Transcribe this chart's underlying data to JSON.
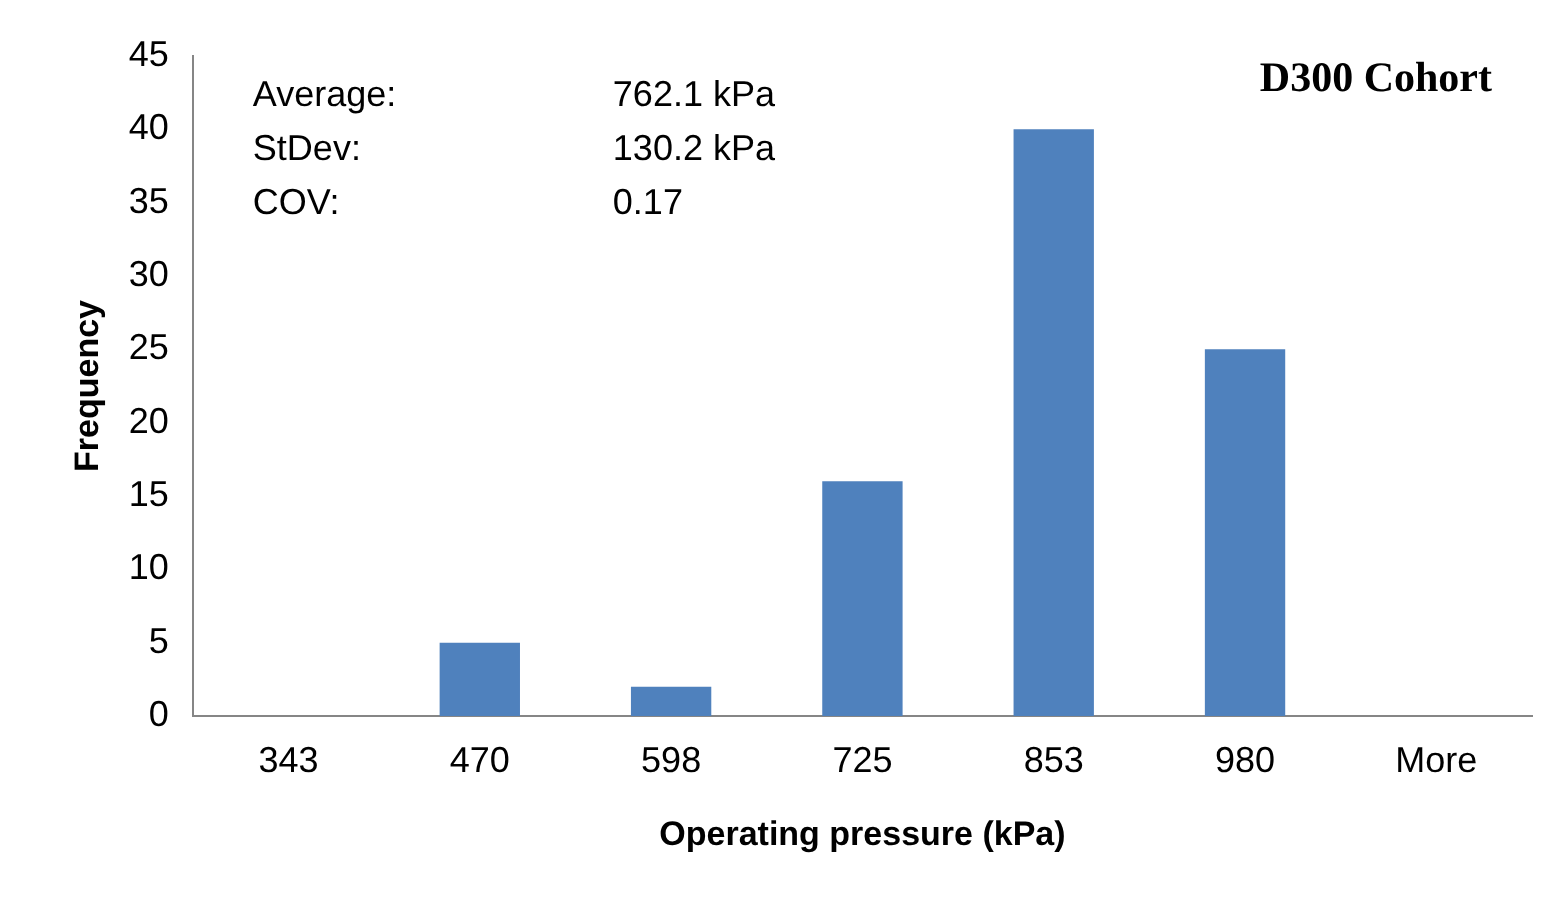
{
  "chart_data": {
    "type": "bar",
    "title": "D300 Cohort",
    "xlabel": "Operating pressure (kPa)",
    "ylabel": "Frequency",
    "categories": [
      "343",
      "470",
      "598",
      "725",
      "853",
      "980",
      "More"
    ],
    "values": [
      0,
      5,
      2,
      16,
      40,
      25,
      0
    ],
    "color": "#4f81bd",
    "ylim": [
      0,
      45
    ],
    "yticks": [
      0,
      5,
      10,
      15,
      20,
      25,
      30,
      35,
      40,
      45
    ],
    "grid": false,
    "legend": false,
    "annotations": [
      "Average:",
      "762.1 kPa",
      "StDev:",
      "130.2 kPa",
      "COV:",
      "0.17"
    ]
  }
}
